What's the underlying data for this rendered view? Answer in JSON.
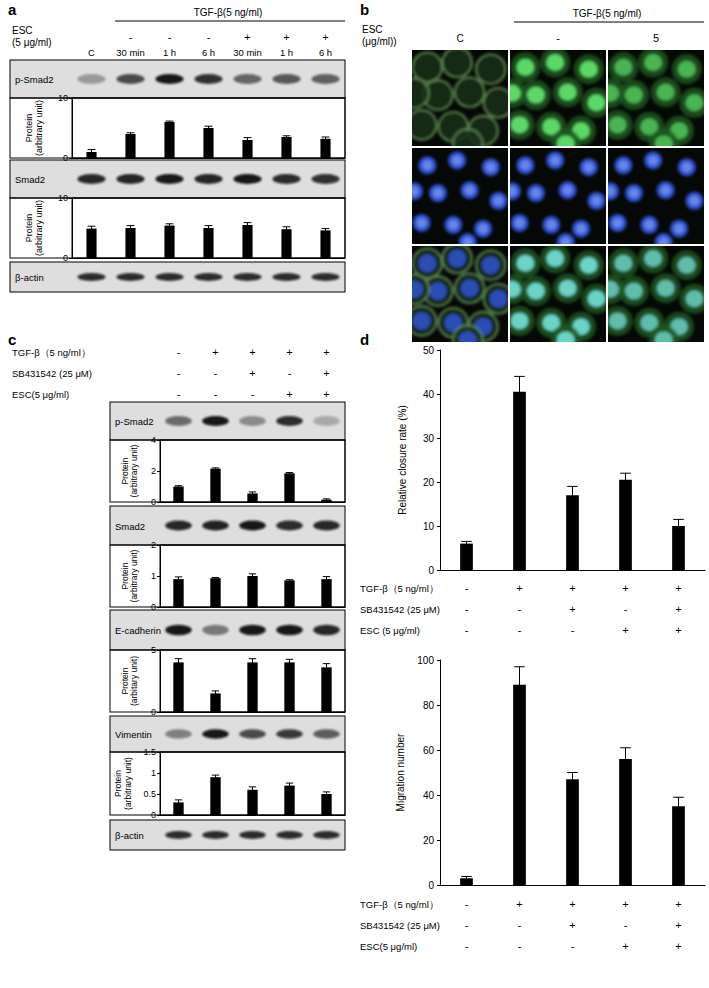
{
  "chart_data": [
    {
      "type": "bar",
      "ylabel": "Protein (arbitrary unit)",
      "categories": [
        null,
        null,
        null,
        null,
        null,
        null,
        null
      ],
      "values": [
        1,
        4,
        6,
        5,
        3,
        3.5,
        3.2
      ],
      "errors": [
        0.4,
        0.2,
        0.15,
        0.3,
        0.4,
        0.2,
        0.3
      ],
      "color": "#000000",
      "ylim": [
        0,
        10
      ],
      "yticks": [
        0,
        10
      ],
      "grid": false,
      "tick_labels": "y"
    },
    {
      "type": "bar",
      "ylabel": "Protein (arbitrary unit)",
      "categories": [
        null,
        null,
        null,
        null,
        null,
        null,
        null
      ],
      "values": [
        4.9,
        5,
        5.4,
        5,
        5.5,
        4.8,
        4.6
      ],
      "errors": [
        0.4,
        0.4,
        0.3,
        0.4,
        0.4,
        0.4,
        0.3
      ],
      "color": "#000000",
      "ylim": [
        0,
        10
      ],
      "yticks": [
        0,
        10
      ],
      "grid": false,
      "tick_labels": "y"
    },
    {
      "type": "bar",
      "ylabel": "Protein (arbitrary unit)",
      "categories": [
        null,
        null,
        null,
        null,
        null
      ],
      "values": [
        1,
        2.15,
        0.55,
        1.85,
        0.15
      ],
      "errors": [
        0.05,
        0.05,
        0.1,
        0.05,
        0.05
      ],
      "color": "#000000",
      "ylim": [
        0,
        4
      ],
      "yticks": [
        0,
        2,
        4
      ],
      "grid": false,
      "tick_labels": "y"
    },
    {
      "type": "bar",
      "ylabel": "Protein (arbitrary unit)",
      "categories": [
        null,
        null,
        null,
        null,
        null
      ],
      "values": [
        0.9,
        0.93,
        1,
        0.86,
        0.9
      ],
      "errors": [
        0.07,
        0.02,
        0.07,
        0.02,
        0.08
      ],
      "color": "#000000",
      "ylim": [
        0,
        2
      ],
      "yticks": [
        0,
        1,
        2
      ],
      "grid": false,
      "tick_labels": "y"
    },
    {
      "type": "bar",
      "ylabel": "Protein (arbitary unit)",
      "categories": [
        null,
        null,
        null,
        null,
        null
      ],
      "values": [
        4,
        1.5,
        4,
        4,
        3.6
      ],
      "errors": [
        0.3,
        0.2,
        0.3,
        0.25,
        0.3
      ],
      "color": "#000000",
      "ylim": [
        0,
        5
      ],
      "yticks": [
        0,
        5
      ],
      "grid": false,
      "tick_labels": "y"
    },
    {
      "type": "bar",
      "ylabel": "Protein (arbitrary unit)",
      "categories": [
        null,
        null,
        null,
        null,
        null
      ],
      "values": [
        0.3,
        0.9,
        0.6,
        0.7,
        0.5
      ],
      "errors": [
        0.06,
        0.05,
        0.07,
        0.06,
        0.05
      ],
      "color": "#000000",
      "ylim": [
        0,
        1.5
      ],
      "yticks": [
        0,
        0.5,
        1,
        1.5
      ],
      "grid": false,
      "tick_labels": "y"
    },
    {
      "type": "bar",
      "ylabel": "Relative closure rate (%)",
      "categories": [
        null,
        null,
        null,
        null,
        null
      ],
      "values": [
        6,
        40.5,
        17,
        20.5,
        10
      ],
      "errors": [
        0.5,
        3.5,
        2,
        1.5,
        1.5
      ],
      "color": "#000000",
      "ylim": [
        0,
        50
      ],
      "yticks": [
        0,
        10,
        20,
        30,
        40,
        50
      ],
      "grid": false,
      "tick_labels": "y"
    },
    {
      "type": "bar",
      "ylabel": "Migration number",
      "categories": [
        null,
        null,
        null,
        null,
        null
      ],
      "values": [
        3,
        89,
        47,
        56,
        35
      ],
      "errors": [
        0.8,
        8,
        3,
        5,
        4
      ],
      "color": "#000000",
      "ylim": [
        0,
        100
      ],
      "yticks": [
        0,
        20,
        40,
        60,
        80,
        100
      ],
      "grid": false,
      "tick_labels": "y"
    }
  ],
  "panels": {
    "a": {
      "label": "a",
      "header": "TGF-β(5 ng/ml)",
      "row_label": "ESC (5 μg/ml)",
      "signs": [
        "-",
        "-",
        "-",
        "+",
        "+",
        "+"
      ],
      "columns": [
        "C",
        "30 min",
        "1 h",
        "6 h",
        "30 min",
        "1 h",
        "6 h"
      ],
      "blots": [
        "p-Smad2",
        "Smad2",
        "β-actin"
      ]
    },
    "b": {
      "label": "b",
      "header": "TGF-β(5 ng/ml)",
      "row_label": "ESC (μg/ml))",
      "columns": [
        "C",
        "-",
        "5"
      ]
    },
    "c": {
      "label": "c",
      "treatments": [
        {
          "name": "TGF-β（5 ng/ml）",
          "signs": [
            "-",
            "+",
            "+",
            "+",
            "+"
          ]
        },
        {
          "name": "SB431542 (25 μM)",
          "signs": [
            "-",
            "-",
            "+",
            "-",
            "+"
          ]
        },
        {
          "name": "ESC(5 μg/ml)",
          "signs": [
            "-",
            "-",
            "-",
            "+",
            "+"
          ]
        }
      ],
      "blots": [
        "p-Smad2",
        "Smad2",
        "E-cadherin",
        "Vimentin",
        "β-actin"
      ]
    },
    "d": {
      "label": "d",
      "tables": [
        [
          {
            "name": "TGF-β（5 ng/ml）",
            "signs": [
              "-",
              "+",
              "+",
              "+",
              "+"
            ]
          },
          {
            "name": "SB431542 (25 μM)",
            "signs": [
              "-",
              "-",
              "+",
              "-",
              "+"
            ]
          },
          {
            "name": "ESC (5 μg/ml)",
            "signs": [
              "-",
              "-",
              "-",
              "+",
              "+"
            ]
          }
        ],
        [
          {
            "name": "TGF-β（5 ng/ml）",
            "signs": [
              "-",
              "+",
              "+",
              "+",
              "+"
            ]
          },
          {
            "name": "SB431542 (25 μM)",
            "signs": [
              "-",
              "-",
              "+",
              "-",
              "+"
            ]
          },
          {
            "name": "ESC(5 μg/ml)",
            "signs": [
              "-",
              "-",
              "-",
              "+",
              "+"
            ]
          }
        ]
      ]
    }
  }
}
